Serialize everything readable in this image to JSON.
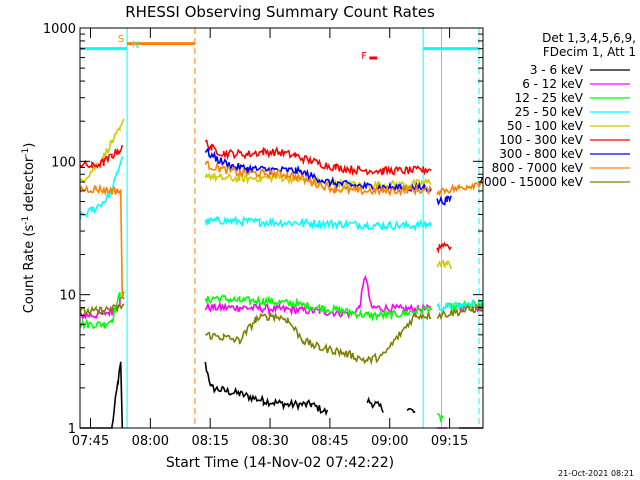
{
  "chart_data": {
    "type": "line",
    "title": "RHESSI Observing Summary Count Rates",
    "xlabel": "Start Time (14-Nov-02 07:42:22)",
    "ylabel": "Count Rate (s⁻¹ detector⁻¹)",
    "ylabel_parts": [
      "Count Rate (s",
      "-1",
      " detector",
      "-1",
      ")"
    ],
    "y_scale": "log",
    "ylim": [
      1,
      1000
    ],
    "xlim_minutes": [
      0,
      101
    ],
    "x_ticks": [
      {
        "label": "07:45",
        "min": 2.63
      },
      {
        "label": "08:00",
        "min": 17.63
      },
      {
        "label": "08:15",
        "min": 32.63
      },
      {
        "label": "08:30",
        "min": 47.63
      },
      {
        "label": "08:45",
        "min": 62.63
      },
      {
        "label": "09:00",
        "min": 77.63
      },
      {
        "label": "09:15",
        "min": 92.63
      }
    ],
    "y_ticks": [
      {
        "label": "1",
        "value": 1
      },
      {
        "label": "10",
        "value": 10
      },
      {
        "label": "100",
        "value": 100
      },
      {
        "label": "1000",
        "value": 1000
      }
    ],
    "legend_header": [
      "Det 1,3,4,5,6,9,",
      "FDecim 1, Att 1"
    ],
    "series": [
      {
        "name": "3 - 6 keV",
        "color": "#000000",
        "segments": [
          [
            [
              0,
              1
            ],
            [
              8,
              1
            ],
            [
              9.5,
              2.2
            ],
            [
              10.2,
              3
            ],
            [
              10.6,
              1
            ]
          ],
          [
            [
              31.4,
              3
            ],
            [
              33,
              2
            ],
            [
              40,
              1.8
            ],
            [
              46,
              1.6
            ],
            [
              52,
              1.5
            ],
            [
              58,
              1.5
            ],
            [
              62,
              1.3
            ]
          ],
          [
            [
              72,
              1.6
            ],
            [
              74,
              1.5
            ],
            [
              76,
              1.4
            ]
          ],
          [
            [
              82,
              1.4
            ],
            [
              84,
              1.3
            ]
          ],
          [
            [
              95,
              1
            ],
            [
              101,
              1
            ]
          ]
        ]
      },
      {
        "name": "6 - 12 keV",
        "color": "#ff00ff",
        "segments": [
          [
            [
              0,
              7
            ],
            [
              4,
              7
            ],
            [
              8,
              7.5
            ],
            [
              10,
              9
            ],
            [
              11,
              9.5
            ]
          ],
          [
            [
              31.4,
              8
            ],
            [
              40,
              8
            ],
            [
              50,
              7.8
            ],
            [
              60,
              7.5
            ],
            [
              68,
              7.2
            ],
            [
              70,
              8
            ],
            [
              71.5,
              14
            ],
            [
              73,
              8
            ],
            [
              80,
              7.8
            ],
            [
              84,
              7.8
            ],
            [
              88,
              7.8
            ]
          ],
          [
            [
              89.5,
              1
            ],
            [
              92,
              1
            ]
          ],
          [
            [
              95,
              8
            ],
            [
              101,
              8
            ]
          ]
        ]
      },
      {
        "name": "12 - 25 keV",
        "color": "#00ff00",
        "segments": [
          [
            [
              0,
              6
            ],
            [
              6,
              6
            ],
            [
              8,
              6.5
            ],
            [
              10,
              10
            ],
            [
              11,
              10
            ]
          ],
          [
            [
              31.4,
              9
            ],
            [
              34,
              9.5
            ],
            [
              40,
              9
            ],
            [
              46,
              9
            ],
            [
              54,
              8.5
            ],
            [
              60,
              8
            ],
            [
              66,
              7.5
            ],
            [
              72,
              7
            ],
            [
              78,
              7
            ],
            [
              84,
              7.5
            ],
            [
              88,
              8
            ]
          ],
          [
            [
              89.5,
              1.2
            ],
            [
              91,
              1.2
            ]
          ],
          [
            [
              92,
              8
            ],
            [
              101,
              8.5
            ]
          ]
        ]
      },
      {
        "name": "25 - 50 keV",
        "color": "#00ffff",
        "segments": [
          [
            [
              0,
              38
            ],
            [
              3,
              43
            ],
            [
              6,
              50
            ],
            [
              8,
              60
            ],
            [
              9.5,
              85
            ],
            [
              10.6,
              110
            ]
          ],
          [
            [
              31.4,
              35
            ],
            [
              35,
              36
            ],
            [
              45,
              35
            ],
            [
              55,
              34.5
            ],
            [
              65,
              34
            ],
            [
              75,
              33
            ],
            [
              85,
              33
            ],
            [
              88,
              34
            ]
          ],
          [
            [
              89.5,
              8
            ],
            [
              101,
              8.5
            ]
          ]
        ]
      },
      {
        "name": "50 - 100 keV",
        "color": "#cccc00",
        "segments": [
          [
            [
              0,
              70
            ],
            [
              3,
              85
            ],
            [
              6,
              110
            ],
            [
              8,
              140
            ],
            [
              10,
              170
            ],
            [
              11,
              200
            ]
          ],
          [
            [
              31.4,
              80
            ],
            [
              35,
              75
            ],
            [
              40,
              74
            ],
            [
              45,
              75
            ],
            [
              50,
              76
            ],
            [
              55,
              73
            ],
            [
              60,
              70
            ],
            [
              65,
              68
            ],
            [
              70,
              66
            ],
            [
              75,
              66
            ],
            [
              80,
              67
            ],
            [
              85,
              68
            ],
            [
              88,
              70
            ]
          ],
          [
            [
              89.5,
              17
            ],
            [
              92,
              17
            ],
            [
              93,
              16.5
            ]
          ]
        ]
      },
      {
        "name": "100 - 300 keV",
        "color": "#ff0000",
        "segments": [
          [
            [
              0,
              95
            ],
            [
              3,
              92
            ],
            [
              6,
              98
            ],
            [
              8,
              110
            ],
            [
              9.5,
              120
            ],
            [
              10.6,
              125
            ]
          ],
          [
            [
              31.4,
              140
            ],
            [
              33,
              125
            ],
            [
              36,
              115
            ],
            [
              42,
              113
            ],
            [
              46,
              118
            ],
            [
              50,
              117
            ],
            [
              54,
              110
            ],
            [
              58,
              100
            ],
            [
              64,
              90
            ],
            [
              70,
              86
            ],
            [
              76,
              85
            ],
            [
              82,
              85
            ],
            [
              86,
              86
            ],
            [
              88,
              88
            ]
          ],
          [
            [
              89.5,
              22
            ],
            [
              91,
              24
            ],
            [
              93,
              23
            ]
          ]
        ]
      },
      {
        "name": "300 - 800 keV",
        "color": "#0000ff",
        "segments": [
          [
            [
              31.4,
              120
            ],
            [
              34,
              105
            ],
            [
              38,
              92
            ],
            [
              42,
              88
            ],
            [
              48,
              86
            ],
            [
              54,
              85
            ],
            [
              58,
              78
            ],
            [
              62,
              70
            ],
            [
              68,
              66
            ],
            [
              74,
              64
            ],
            [
              80,
              63
            ],
            [
              86,
              63
            ],
            [
              88,
              63
            ]
          ],
          [
            [
              89.5,
              50
            ],
            [
              92,
              51
            ],
            [
              93,
              53
            ]
          ]
        ]
      },
      {
        "name": "800 - 7000 keV",
        "color": "#ff8000",
        "segments": [
          [
            [
              0,
              62
            ],
            [
              4,
              62
            ],
            [
              8,
              60
            ],
            [
              9.5,
              60
            ],
            [
              10.2,
              58
            ],
            [
              10.6,
              10
            ]
          ],
          [
            [
              31.4,
              95
            ],
            [
              35,
              88
            ],
            [
              40,
              82
            ],
            [
              46,
              81
            ],
            [
              52,
              80
            ],
            [
              58,
              70
            ],
            [
              64,
              62
            ],
            [
              70,
              60
            ],
            [
              76,
              60
            ],
            [
              82,
              61
            ],
            [
              86,
              61
            ],
            [
              88,
              60
            ]
          ],
          [
            [
              89.5,
              60
            ],
            [
              95,
              63
            ],
            [
              101,
              70
            ]
          ]
        ]
      },
      {
        "name": "7000 - 15000 keV",
        "color": "#808000",
        "segments": [
          [
            [
              0,
              7.5
            ],
            [
              4,
              7.5
            ],
            [
              8,
              7.8
            ],
            [
              10,
              8
            ],
            [
              11,
              8.5
            ]
          ],
          [
            [
              31.4,
              5
            ],
            [
              36,
              4.8
            ],
            [
              40,
              4.5
            ],
            [
              44,
              6.5
            ],
            [
              48,
              7
            ],
            [
              52,
              6.5
            ],
            [
              56,
              4.5
            ],
            [
              60,
              4
            ],
            [
              64,
              3.8
            ],
            [
              68,
              3.5
            ],
            [
              72,
              3.2
            ],
            [
              76,
              3.5
            ],
            [
              80,
              5
            ],
            [
              84,
              7
            ],
            [
              88,
              7
            ]
          ],
          [
            [
              89.5,
              7
            ],
            [
              101,
              8
            ]
          ]
        ]
      }
    ],
    "attenuator_lines_min": [
      0,
      90.6,
      100
    ],
    "other_vlines_cyan_min": [
      11.8,
      86.0
    ],
    "orange_dashed_min": [
      28.8
    ],
    "attenuator_bars_value": 700,
    "flags": [
      {
        "label": "S",
        "color": "#ff8000"
      },
      {
        "label": "N",
        "color": "#00ffff"
      },
      {
        "label": "F",
        "color": "#ff0000"
      }
    ],
    "footer_timestamp": "21-Oct-2021 08:21"
  }
}
